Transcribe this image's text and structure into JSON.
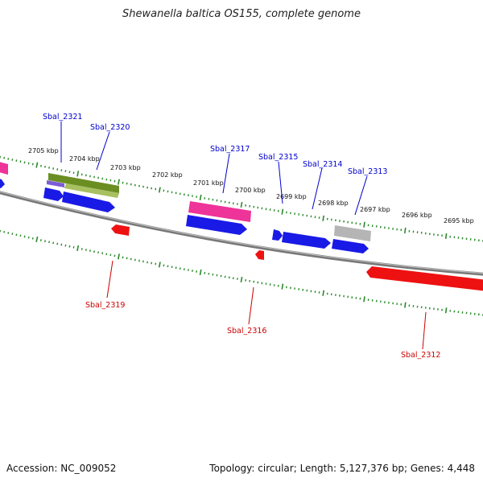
{
  "title": "Shewanella baltica OS155, complete genome",
  "footer": {
    "accession_label": "Accession:",
    "accession": "NC_009052",
    "topology_label": "Topology:",
    "topology": "circular",
    "length_label": "Length:",
    "length": "5,127,376 bp",
    "genes_label": "Genes:",
    "genes": "4,448"
  },
  "ticks": [
    {
      "label": "2705 kbp"
    },
    {
      "label": "2704 kbp"
    },
    {
      "label": "2703 kbp"
    },
    {
      "label": "2702 kbp"
    },
    {
      "label": "2701 kbp"
    },
    {
      "label": "2700 kbp"
    },
    {
      "label": "2699 kbp"
    },
    {
      "label": "2698 kbp"
    },
    {
      "label": "2697 kbp"
    },
    {
      "label": "2696 kbp"
    },
    {
      "label": "2695 kbp"
    }
  ],
  "genes_forward": [
    {
      "name": "Sbal_2321"
    },
    {
      "name": "Sbal_2320"
    },
    {
      "name": "Sbal_2317"
    },
    {
      "name": "Sbal_2315"
    },
    {
      "name": "Sbal_2314"
    },
    {
      "name": "Sbal_2313"
    }
  ],
  "genes_reverse": [
    {
      "name": "Sbal_2319"
    },
    {
      "name": "Sbal_2316"
    },
    {
      "name": "Sbal_2312"
    }
  ],
  "colors": {
    "forward_label": "#0000cc",
    "reverse_label": "#cc0000",
    "tick": "#2a8a2a",
    "backbone": "#888888",
    "cds": "#1a1ae6",
    "reverse_cds": "#ee1111",
    "pink": "#ee3399",
    "olive": "#6b8e23",
    "gray": "#b5b5b5"
  }
}
